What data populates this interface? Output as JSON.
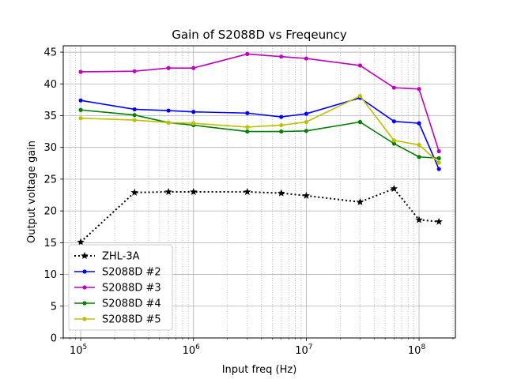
{
  "chart_data": {
    "type": "line",
    "title": "Gain of S2088D vs Freqeuncy",
    "xlabel": "Input freq (Hz)",
    "ylabel": "Output voltage gain",
    "x_scale": "log",
    "xlim": [
      70000,
      210000000
    ],
    "ylim": [
      0,
      46
    ],
    "y_ticks": [
      0,
      5,
      10,
      15,
      20,
      25,
      30,
      35,
      40,
      45
    ],
    "x_ticks": [
      {
        "value": 100000,
        "base": "10",
        "exp": "5"
      },
      {
        "value": 1000000,
        "base": "10",
        "exp": "6"
      },
      {
        "value": 10000000,
        "base": "10",
        "exp": "7"
      },
      {
        "value": 100000000,
        "base": "10",
        "exp": "8"
      }
    ],
    "grid": true,
    "legend_position": "lower-left",
    "x": [
      100000,
      300000,
      600000,
      1000000,
      3000000,
      6000000,
      10000000,
      30000000,
      60000000,
      100000000,
      150000000
    ],
    "series": [
      {
        "name": "ZHL-3A",
        "color": "#000000",
        "style": "dotted",
        "marker": "star",
        "values": [
          15.1,
          22.9,
          23.0,
          23.0,
          23.0,
          22.8,
          22.4,
          21.4,
          23.5,
          18.6,
          18.3
        ]
      },
      {
        "name": "S2088D #2",
        "color": "#0000ff",
        "style": "solid",
        "marker": "dot",
        "values": [
          37.4,
          36.0,
          35.8,
          35.6,
          35.4,
          34.8,
          35.3,
          37.8,
          34.1,
          33.8,
          26.6
        ]
      },
      {
        "name": "S2088D #3",
        "color": "#bf00bf",
        "style": "solid",
        "marker": "dot",
        "values": [
          41.9,
          42.0,
          42.5,
          42.5,
          44.7,
          44.3,
          44.0,
          42.9,
          39.4,
          39.2,
          29.4
        ]
      },
      {
        "name": "S2088D #4",
        "color": "#008000",
        "style": "solid",
        "marker": "dot",
        "values": [
          35.9,
          35.1,
          33.9,
          33.5,
          32.5,
          32.5,
          32.6,
          34.0,
          30.6,
          28.5,
          28.3
        ]
      },
      {
        "name": "S2088D #5",
        "color": "#bfbf00",
        "style": "solid",
        "marker": "dot",
        "values": [
          34.6,
          34.3,
          33.9,
          33.8,
          33.2,
          33.5,
          34.0,
          38.1,
          31.1,
          30.4,
          27.6
        ]
      }
    ]
  }
}
